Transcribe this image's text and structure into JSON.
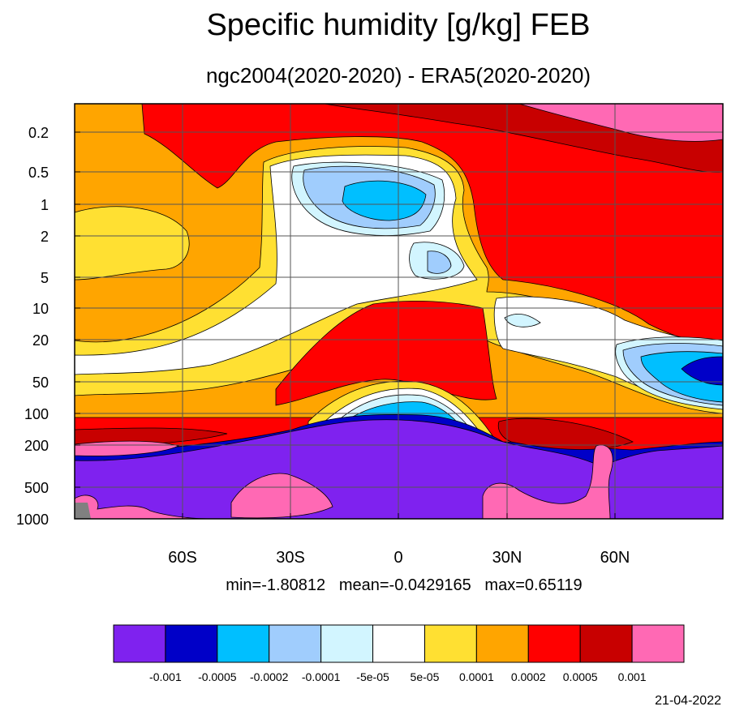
{
  "chart_data": {
    "type": "heatmap",
    "title": "Specific humidity [g/kg] FEB",
    "subtitle": "ngc2004(2020-2020) - ERA5(2020-2020)",
    "stats": "min=-1.80812   mean=-0.0429165   max=0.65119",
    "date": "21-04-2022",
    "x_axis": {
      "ticks": [
        {
          "value": -60,
          "label": "60S"
        },
        {
          "value": -30,
          "label": "30S"
        },
        {
          "value": 0,
          "label": "0"
        },
        {
          "value": 30,
          "label": "30N"
        },
        {
          "value": 60,
          "label": "60N"
        }
      ],
      "range": [
        -90,
        90
      ]
    },
    "y_axis": {
      "scale": "log",
      "reversed": true,
      "range": [
        0.1,
        1000
      ],
      "ticks": [
        {
          "value": 0.2,
          "label": "0.2"
        },
        {
          "value": 0.5,
          "label": "0.5"
        },
        {
          "value": 1,
          "label": "1"
        },
        {
          "value": 2,
          "label": "2"
        },
        {
          "value": 5,
          "label": "5"
        },
        {
          "value": 10,
          "label": "10"
        },
        {
          "value": 20,
          "label": "20"
        },
        {
          "value": 50,
          "label": "50"
        },
        {
          "value": 100,
          "label": "100"
        },
        {
          "value": 200,
          "label": "200"
        },
        {
          "value": 500,
          "label": "500"
        },
        {
          "value": 1000,
          "label": "1000"
        }
      ]
    },
    "grid": true,
    "legend": {
      "placement": "bottom",
      "colors": [
        "#7f22ef",
        "#0000c8",
        "#00bfff",
        "#a0cdfd",
        "#d2f5ff",
        "#ffffff",
        "#ffe032",
        "#ffa500",
        "#ff0000",
        "#c80000",
        "#ff69b4"
      ],
      "levels": [
        "-0.001",
        "-0.0005",
        "-0.0002",
        "-0.0001",
        "-5e-05",
        "5e-05",
        "0.0001",
        "0.0002",
        "0.0005",
        "0.001"
      ]
    }
  }
}
